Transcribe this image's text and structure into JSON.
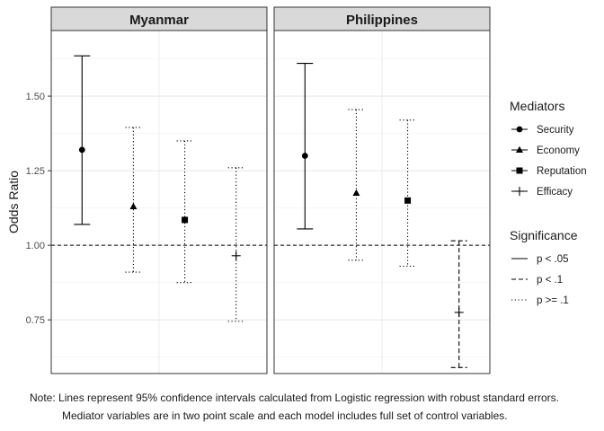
{
  "chart_data": {
    "type": "errorbar",
    "ylabel": "Odds Ratio",
    "ylim": [
      0.57,
      1.72
    ],
    "yticks": [
      0.75,
      1.0,
      1.25,
      1.5
    ],
    "ytick_labels": [
      "0.75",
      "1.00",
      "1.25",
      "1.50"
    ],
    "reference_line": 1.0,
    "grid": true,
    "categories": [
      "Security",
      "Economy",
      "Reputation",
      "Efficacy"
    ],
    "panels": [
      {
        "name": "Myanmar",
        "points": [
          {
            "mediator": "Security",
            "estimate": 1.32,
            "lower": 1.07,
            "upper": 1.635,
            "significance": "p < .05"
          },
          {
            "mediator": "Economy",
            "estimate": 1.13,
            "lower": 0.91,
            "upper": 1.395,
            "significance": "p >= .1"
          },
          {
            "mediator": "Reputation",
            "estimate": 1.085,
            "lower": 0.875,
            "upper": 1.35,
            "significance": "p >= .1"
          },
          {
            "mediator": "Efficacy",
            "estimate": 0.965,
            "lower": 0.745,
            "upper": 1.26,
            "significance": "p >= .1"
          }
        ]
      },
      {
        "name": "Philippines",
        "points": [
          {
            "mediator": "Security",
            "estimate": 1.3,
            "lower": 1.055,
            "upper": 1.61,
            "significance": "p < .05"
          },
          {
            "mediator": "Economy",
            "estimate": 1.175,
            "lower": 0.95,
            "upper": 1.455,
            "significance": "p >= .1"
          },
          {
            "mediator": "Reputation",
            "estimate": 1.15,
            "lower": 0.93,
            "upper": 1.42,
            "significance": "p >= .1"
          },
          {
            "mediator": "Efficacy",
            "estimate": 0.775,
            "lower": 0.59,
            "upper": 1.015,
            "significance": "p < .1"
          }
        ]
      }
    ],
    "legend": {
      "placement": "right",
      "mediators": {
        "title": "Mediators",
        "items": [
          {
            "label": "Security",
            "shape": "circle"
          },
          {
            "label": "Economy",
            "shape": "triangle"
          },
          {
            "label": "Reputation",
            "shape": "square"
          },
          {
            "label": "Efficacy",
            "shape": "plus"
          }
        ]
      },
      "significance": {
        "title": "Significance",
        "items": [
          {
            "label": "p < .05",
            "linetype": "solid"
          },
          {
            "label": "p < .1",
            "linetype": "dashed"
          },
          {
            "label": "p >= .1",
            "linetype": "dotted"
          }
        ]
      }
    },
    "note": {
      "line1": "Note: Lines represent 95% confidence intervals calculated from Logistic regression with robust standard errors.",
      "line2": "Mediator variables are in two point scale and each model includes full set of control variables."
    }
  }
}
